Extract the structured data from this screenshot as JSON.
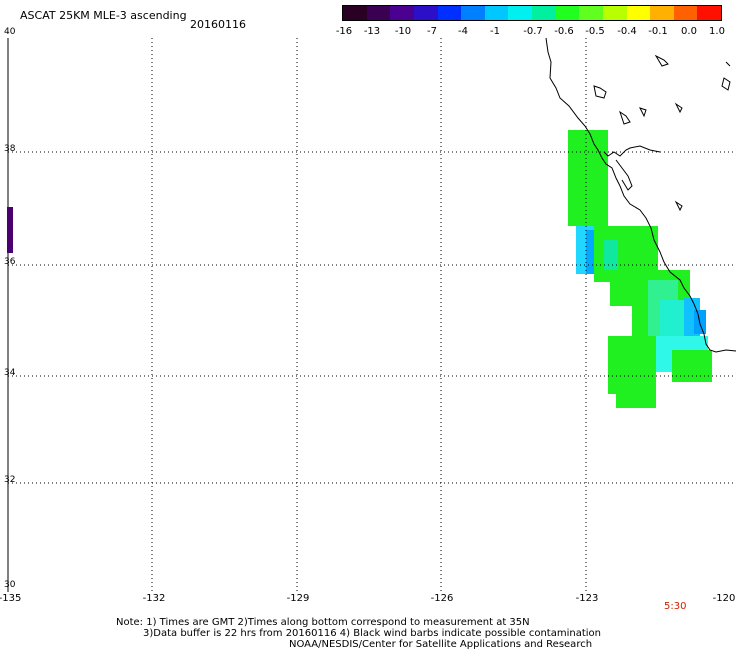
{
  "header": {
    "title": "ASCAT 25KM MLE-3 ascending",
    "date": "20160116"
  },
  "colorbar": {
    "colors": [
      "#2a0025",
      "#3a0052",
      "#4a0090",
      "#2b10c8",
      "#0030ff",
      "#0080ff",
      "#00c8ff",
      "#00f0f0",
      "#00f0a0",
      "#20ff20",
      "#60ff20",
      "#b8ff00",
      "#ffff00",
      "#ffb000",
      "#ff6000",
      "#ff1000"
    ],
    "labels": [
      "-16",
      "-13",
      "-10",
      "-7",
      "-4",
      "-1",
      "-0.7",
      "-0.6",
      "-0.5",
      "-0.4",
      "-0.1",
      "0.0",
      "1.0"
    ]
  },
  "axes": {
    "lat_labels": [
      "40",
      "38",
      "36",
      "34",
      "32",
      "30"
    ],
    "lon_labels": [
      "-135",
      "-132",
      "-129",
      "-126",
      "-123",
      "-120"
    ]
  },
  "time_label": "5:30",
  "footer": {
    "note1": "Note: 1) Times are GMT 2)Times along bottom correspond to measurement at 35N",
    "note2": "3)Data buffer is 22 hrs from 20160116 4) Black wind barbs indicate possible contamination",
    "credit": "NOAA/NESDIS/Center for Satellite Applications and Research"
  }
}
